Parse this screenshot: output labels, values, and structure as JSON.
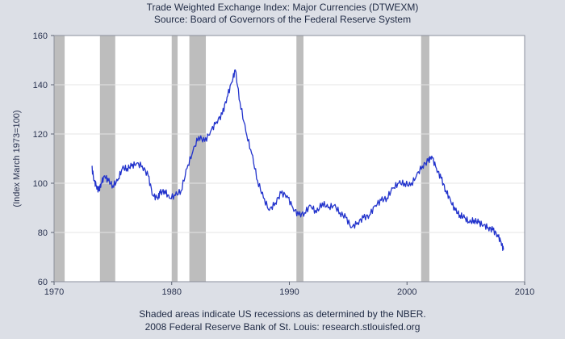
{
  "chart_data": {
    "type": "line",
    "title": "Trade Weighted Exchange Index: Major Currencies (DTWEXM)",
    "subtitle": "Source: Board of Governors of the Federal Reserve System",
    "ylabel": "(Index March 1973=100)",
    "xlabel": "",
    "xlim": [
      1970,
      2010
    ],
    "ylim": [
      60,
      160
    ],
    "x_ticks": [
      1970,
      1980,
      1990,
      2000,
      2010
    ],
    "y_ticks": [
      60,
      80,
      100,
      120,
      140,
      160
    ],
    "grid": true,
    "recessions": [
      [
        1970.0,
        1970.9
      ],
      [
        1973.9,
        1975.2
      ],
      [
        1980.0,
        1980.5
      ],
      [
        1981.5,
        1982.9
      ],
      [
        1990.6,
        1991.2
      ],
      [
        2001.2,
        2001.9
      ]
    ],
    "series": [
      {
        "color": "#2233cc",
        "x": [
          1973.2,
          1973.4,
          1973.6,
          1973.8,
          1974.0,
          1974.3,
          1974.6,
          1975.0,
          1975.4,
          1975.8,
          1976.2,
          1976.6,
          1977.0,
          1977.5,
          1978.0,
          1978.4,
          1978.8,
          1979.0,
          1979.4,
          1979.8,
          1980.3,
          1980.8,
          1981.3,
          1981.8,
          1982.3,
          1982.8,
          1983.3,
          1983.8,
          1984.3,
          1984.7,
          1985.1,
          1985.4,
          1985.8,
          1986.3,
          1986.8,
          1987.3,
          1987.8,
          1988.3,
          1988.8,
          1989.3,
          1989.8,
          1990.3,
          1990.8,
          1991.3,
          1991.8,
          1992.3,
          1992.8,
          1993.3,
          1993.8,
          1994.3,
          1994.8,
          1995.3,
          1995.8,
          1996.3,
          1996.8,
          1997.3,
          1997.8,
          1998.3,
          1998.8,
          1999.3,
          1999.8,
          2000.3,
          2000.8,
          2001.3,
          2001.8,
          2002.1,
          2002.5,
          2002.9,
          2003.3,
          2003.7,
          2004.1,
          2004.5,
          2004.9,
          2005.3,
          2005.7,
          2006.1,
          2006.5,
          2006.9,
          2007.3,
          2007.7,
          2008.0,
          2008.2
        ],
        "values": [
          107,
          101,
          99,
          97,
          100,
          103,
          101,
          99,
          101,
          106,
          106,
          107,
          108,
          107,
          103,
          95,
          94,
          96,
          97,
          94,
          95,
          97,
          106,
          113,
          119,
          117,
          121,
          125,
          128,
          135,
          141,
          146,
          133,
          121,
          112,
          101,
          94,
          89,
          92,
          96,
          95,
          90,
          87,
          88,
          91,
          88,
          92,
          90,
          91,
          88,
          86,
          82,
          84,
          86,
          87,
          91,
          93,
          94,
          98,
          100,
          100,
          99,
          103,
          107,
          109,
          111,
          106,
          102,
          97,
          93,
          89,
          87,
          86,
          84,
          85,
          84,
          83,
          82,
          81,
          79,
          76,
          73
        ]
      }
    ],
    "footer_line1": "Shaded areas indicate US recessions as determined by the NBER.",
    "footer_line2": "2008 Federal Reserve Bank of St. Louis: research.stlouisfed.org"
  }
}
